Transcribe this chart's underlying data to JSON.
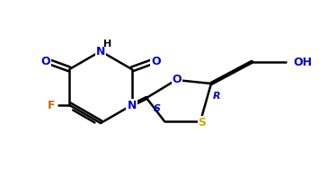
{
  "bg_color": "#ffffff",
  "bond_color": "#000000",
  "atom_colors": {
    "O": "#0000cc",
    "N": "#0000cc",
    "F": "#cc6600",
    "S": "#ccaa00",
    "H": "#000000",
    "C": "#000000",
    "stereo": "#0000cc"
  },
  "figsize": [
    3.65,
    1.97
  ],
  "dpi": 100,
  "lw": 1.8,
  "lw_bold": 3.2
}
